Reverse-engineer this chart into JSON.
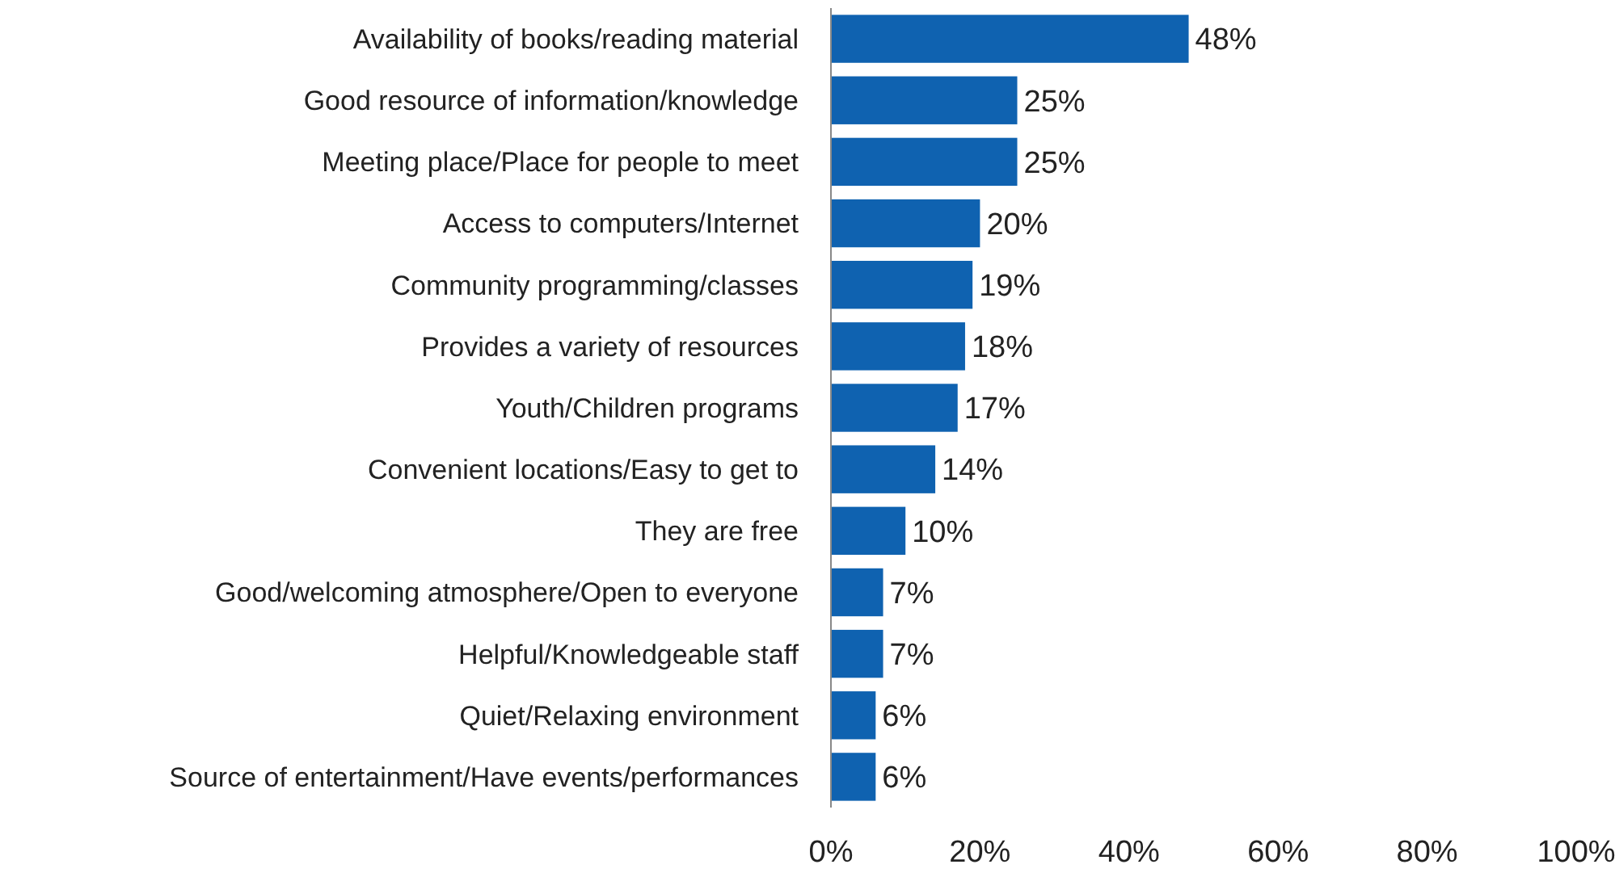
{
  "chart_data": {
    "type": "bar",
    "orientation": "horizontal",
    "categories": [
      "Availability of books/reading material",
      "Good resource of information/knowledge",
      "Meeting place/Place for people to meet",
      "Access to computers/Internet",
      "Community programming/classes",
      "Provides a variety of resources",
      "Youth/Children programs",
      "Convenient locations/Easy to get to",
      "They are free",
      "Good/welcoming atmosphere/Open to everyone",
      "Helpful/Knowledgeable staff",
      "Quiet/Relaxing environment",
      "Source of entertainment/Have events/performances"
    ],
    "values": [
      48,
      25,
      25,
      20,
      19,
      18,
      17,
      14,
      10,
      7,
      7,
      6,
      6
    ],
    "value_labels": [
      "48%",
      "25%",
      "25%",
      "20%",
      "19%",
      "18%",
      "17%",
      "14%",
      "10%",
      "7%",
      "7%",
      "6%",
      "6%"
    ],
    "color": "#0f62b0",
    "xlim": [
      0,
      100
    ],
    "xticks": [
      {
        "value": 0,
        "label": "0%"
      },
      {
        "value": 20,
        "label": "20%"
      },
      {
        "value": 40,
        "label": "40%"
      },
      {
        "value": 60,
        "label": "60%"
      },
      {
        "value": 80,
        "label": "80%"
      },
      {
        "value": 100,
        "label": "100%"
      }
    ],
    "grid": false
  }
}
